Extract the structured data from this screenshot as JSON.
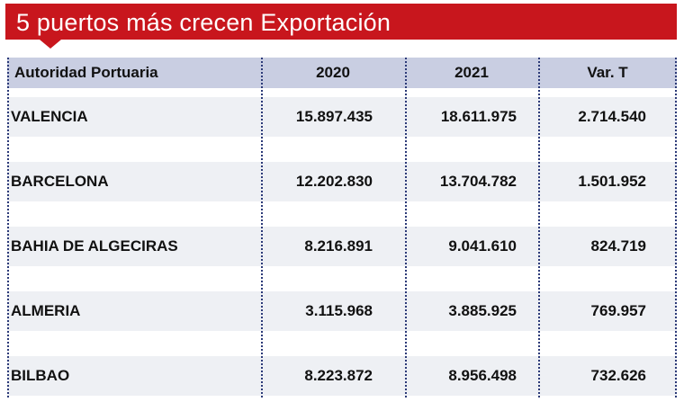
{
  "title": "5 puertos más crecen Exportación",
  "table": {
    "header": [
      "Autoridad Portuaria",
      "2020",
      "2021",
      "Var. T"
    ],
    "rows": [
      [
        "VALENCIA",
        "15.897.435",
        "18.611.975",
        "2.714.540"
      ],
      [
        "BARCELONA",
        "12.202.830",
        "13.704.782",
        "1.501.952"
      ],
      [
        "BAHIA DE ALGECIRAS",
        "8.216.891",
        "9.041.610",
        "824.719"
      ],
      [
        "ALMERIA",
        "3.115.968",
        "3.885.925",
        "769.957"
      ],
      [
        "BILBAO",
        "8.223.872",
        "8.956.498",
        "732.626"
      ]
    ]
  }
}
